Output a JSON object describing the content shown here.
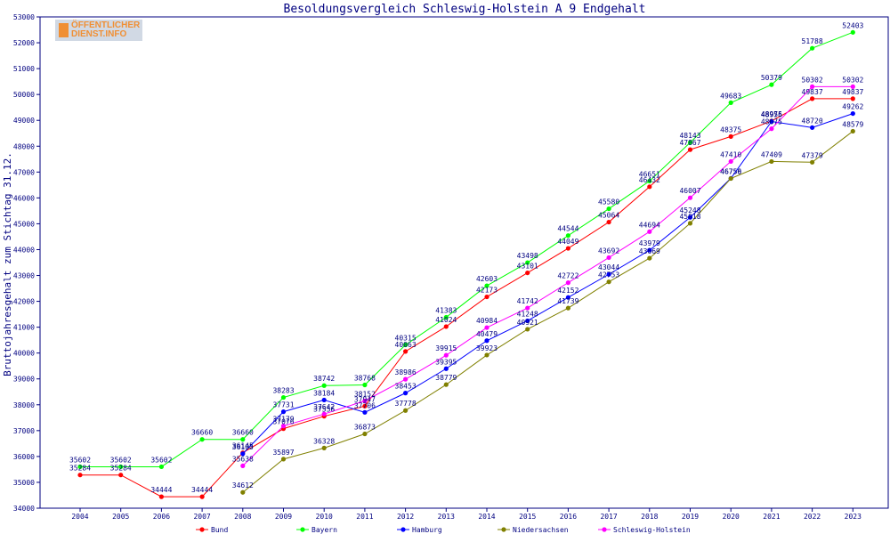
{
  "logo": {
    "line1": "ÖFFENTLICHER",
    "line2": "DIENST.INFO"
  },
  "chart_data": {
    "type": "line",
    "title": "Besoldungsvergleich Schleswig-Holstein A 9 Endgehalt",
    "xlabel": "",
    "ylabel": "Bruttojahresgehalt zum Stichtag 31.12.",
    "x": [
      "2004",
      "2005",
      "2006",
      "2007",
      "2008",
      "2009",
      "2010",
      "2011",
      "2012",
      "2013",
      "2014",
      "2015",
      "2016",
      "2017",
      "2018",
      "2019",
      "2020",
      "2021",
      "2022",
      "2023"
    ],
    "ylim": [
      34000,
      53000
    ],
    "yticks": [
      "34000",
      "35000",
      "36000",
      "37000",
      "38000",
      "39000",
      "40000",
      "41000",
      "42000",
      "43000",
      "44000",
      "45000",
      "46000",
      "47000",
      "48000",
      "49000",
      "50000",
      "51000",
      "52000",
      "53000"
    ],
    "grid": false,
    "legend_position": "bottom",
    "series": [
      {
        "name": "Bund",
        "color": "#ff0000",
        "x": [
          "2004",
          "2005",
          "2006",
          "2007",
          "2008",
          "2009",
          "2010",
          "2011",
          "2012",
          "2013",
          "2014",
          "2015",
          "2016",
          "2017",
          "2018",
          "2019",
          "2020",
          "2021",
          "2022",
          "2023"
        ],
        "values": [
          35284,
          35284,
          34444,
          34444,
          36145,
          37076,
          37556,
          37947,
          40063,
          41024,
          42173,
          43101,
          44049,
          45064,
          46432,
          47867,
          48375,
          48975,
          49837,
          49837
        ]
      },
      {
        "name": "Bayern",
        "color": "#00ff00",
        "x": [
          "2004",
          "2005",
          "2006",
          "2007",
          "2008",
          "2009",
          "2010",
          "2011",
          "2012",
          "2013",
          "2014",
          "2015",
          "2016",
          "2017",
          "2018",
          "2019",
          "2020",
          "2021",
          "2022",
          "2023"
        ],
        "values": [
          35602,
          35602,
          35602,
          36660,
          36660,
          38283,
          38742,
          38768,
          40315,
          41383,
          42603,
          43498,
          44544,
          45580,
          46651,
          48143,
          49683,
          50379,
          51788,
          52403
        ]
      },
      {
        "name": "Hamburg",
        "color": "#0000ff",
        "x": [
          "2008",
          "2009",
          "2010",
          "2011",
          "2012",
          "2013",
          "2014",
          "2015",
          "2016",
          "2017",
          "2018",
          "2019",
          "2020",
          "2021",
          "2022",
          "2023"
        ],
        "values": [
          36105,
          37731,
          38184,
          37706,
          38453,
          39395,
          40479,
          41248,
          42152,
          43044,
          43979,
          45248,
          46756,
          48956,
          48720,
          49262
        ]
      },
      {
        "name": "Niedersachsen",
        "color": "#808000",
        "x": [
          "2008",
          "2009",
          "2010",
          "2011",
          "2012",
          "2013",
          "2014",
          "2015",
          "2016",
          "2017",
          "2018",
          "2019",
          "2020",
          "2021",
          "2022",
          "2023"
        ],
        "values": [
          34612,
          35897,
          36328,
          36873,
          37778,
          38779,
          39923,
          40921,
          41739,
          42753,
          43669,
          45018,
          46750,
          47409,
          47379,
          48579
        ]
      },
      {
        "name": "Schleswig-Holstein",
        "color": "#ff00ff",
        "x": [
          "2008",
          "2009",
          "2010",
          "2011",
          "2012",
          "2013",
          "2014",
          "2015",
          "2016",
          "2017",
          "2018",
          "2019",
          "2020",
          "2021",
          "2022",
          "2023"
        ],
        "values": [
          35638,
          37179,
          37642,
          38152,
          38986,
          39915,
          40984,
          41742,
          42722,
          43692,
          44694,
          46007,
          47410,
          48675,
          50302,
          50302
        ]
      }
    ]
  }
}
